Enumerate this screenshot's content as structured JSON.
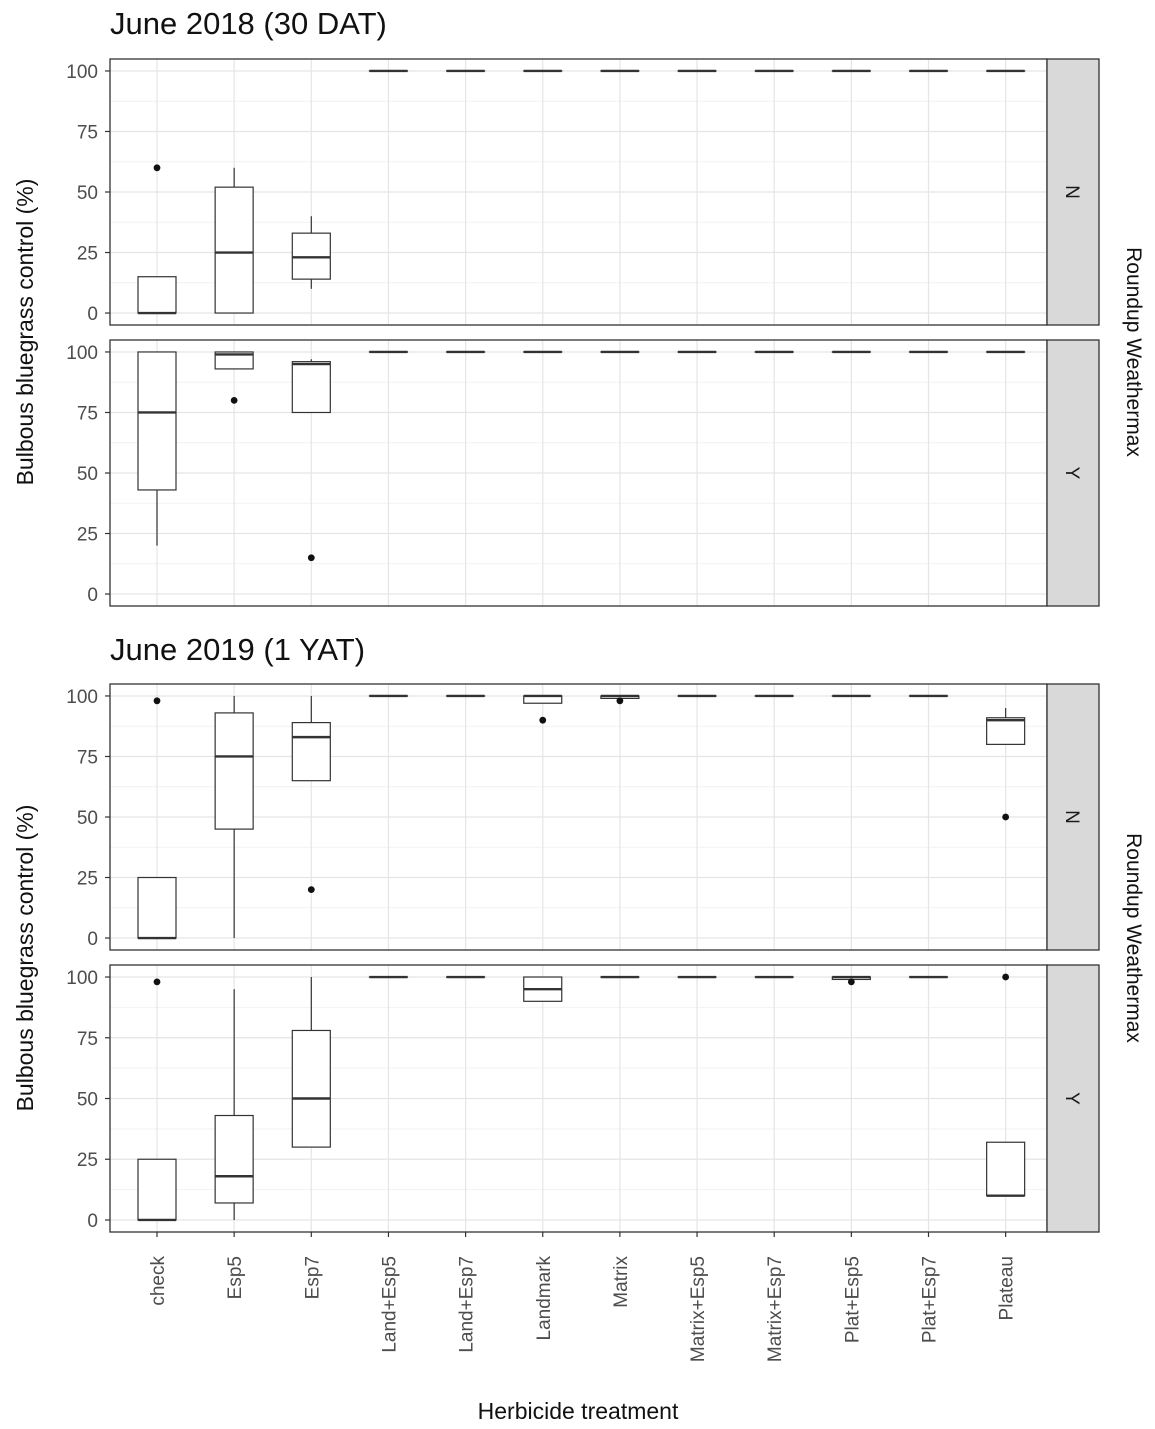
{
  "figure": {
    "xlabel": "Herbicide treatment",
    "ylabel": "Bulbous bluegrass control (%)",
    "facet_label": "Roundup Weathermax"
  },
  "chart_data": [
    {
      "type": "boxplot",
      "title": "June 2018 (30 DAT)",
      "xlabel": "Herbicide treatment",
      "ylabel": "Bulbous bluegrass control (%)",
      "ylim": [
        0,
        100
      ],
      "yticks": [
        0,
        25,
        50,
        75,
        100
      ],
      "categories": [
        "check",
        "Esp5",
        "Esp7",
        "Land+Esp5",
        "Land+Esp7",
        "Landmark",
        "Matrix",
        "Matrix+Esp5",
        "Matrix+Esp7",
        "Plat+Esp5",
        "Plat+Esp7",
        "Plateau"
      ],
      "facet_title": "Roundup Weathermax",
      "panels": [
        {
          "facet": "N",
          "boxes": [
            {
              "min": 0,
              "q1": 0,
              "median": 0,
              "q3": 15,
              "max": 15,
              "outliers": [
                60
              ]
            },
            {
              "min": 0,
              "q1": 0,
              "median": 25,
              "q3": 52,
              "max": 60,
              "outliers": []
            },
            {
              "min": 10,
              "q1": 14,
              "median": 23,
              "q3": 33,
              "max": 40,
              "outliers": []
            },
            {
              "min": 100,
              "q1": 100,
              "median": 100,
              "q3": 100,
              "max": 100,
              "outliers": []
            },
            {
              "min": 100,
              "q1": 100,
              "median": 100,
              "q3": 100,
              "max": 100,
              "outliers": []
            },
            {
              "min": 100,
              "q1": 100,
              "median": 100,
              "q3": 100,
              "max": 100,
              "outliers": []
            },
            {
              "min": 100,
              "q1": 100,
              "median": 100,
              "q3": 100,
              "max": 100,
              "outliers": []
            },
            {
              "min": 100,
              "q1": 100,
              "median": 100,
              "q3": 100,
              "max": 100,
              "outliers": []
            },
            {
              "min": 100,
              "q1": 100,
              "median": 100,
              "q3": 100,
              "max": 100,
              "outliers": []
            },
            {
              "min": 100,
              "q1": 100,
              "median": 100,
              "q3": 100,
              "max": 100,
              "outliers": []
            },
            {
              "min": 100,
              "q1": 100,
              "median": 100,
              "q3": 100,
              "max": 100,
              "outliers": []
            },
            {
              "min": 100,
              "q1": 100,
              "median": 100,
              "q3": 100,
              "max": 100,
              "outliers": []
            }
          ]
        },
        {
          "facet": "Y",
          "boxes": [
            {
              "min": 20,
              "q1": 43,
              "median": 75,
              "q3": 100,
              "max": 100,
              "outliers": []
            },
            {
              "min": 93,
              "q1": 93,
              "median": 99,
              "q3": 100,
              "max": 100,
              "outliers": [
                80
              ]
            },
            {
              "min": 75,
              "q1": 75,
              "median": 95,
              "q3": 96,
              "max": 97,
              "outliers": [
                15
              ]
            },
            {
              "min": 100,
              "q1": 100,
              "median": 100,
              "q3": 100,
              "max": 100,
              "outliers": []
            },
            {
              "min": 100,
              "q1": 100,
              "median": 100,
              "q3": 100,
              "max": 100,
              "outliers": []
            },
            {
              "min": 100,
              "q1": 100,
              "median": 100,
              "q3": 100,
              "max": 100,
              "outliers": []
            },
            {
              "min": 100,
              "q1": 100,
              "median": 100,
              "q3": 100,
              "max": 100,
              "outliers": []
            },
            {
              "min": 100,
              "q1": 100,
              "median": 100,
              "q3": 100,
              "max": 100,
              "outliers": []
            },
            {
              "min": 100,
              "q1": 100,
              "median": 100,
              "q3": 100,
              "max": 100,
              "outliers": []
            },
            {
              "min": 100,
              "q1": 100,
              "median": 100,
              "q3": 100,
              "max": 100,
              "outliers": []
            },
            {
              "min": 100,
              "q1": 100,
              "median": 100,
              "q3": 100,
              "max": 100,
              "outliers": []
            },
            {
              "min": 100,
              "q1": 100,
              "median": 100,
              "q3": 100,
              "max": 100,
              "outliers": []
            }
          ]
        }
      ]
    },
    {
      "type": "boxplot",
      "title": "June 2019 (1 YAT)",
      "xlabel": "Herbicide treatment",
      "ylabel": "Bulbous bluegrass control (%)",
      "ylim": [
        0,
        100
      ],
      "yticks": [
        0,
        25,
        50,
        75,
        100
      ],
      "categories": [
        "check",
        "Esp5",
        "Esp7",
        "Land+Esp5",
        "Land+Esp7",
        "Landmark",
        "Matrix",
        "Matrix+Esp5",
        "Matrix+Esp7",
        "Plat+Esp5",
        "Plat+Esp7",
        "Plateau"
      ],
      "facet_title": "Roundup Weathermax",
      "panels": [
        {
          "facet": "N",
          "boxes": [
            {
              "min": 0,
              "q1": 0,
              "median": 0,
              "q3": 25,
              "max": 25,
              "outliers": [
                98
              ]
            },
            {
              "min": 0,
              "q1": 45,
              "median": 75,
              "q3": 93,
              "max": 100,
              "outliers": []
            },
            {
              "min": 65,
              "q1": 65,
              "median": 83,
              "q3": 89,
              "max": 100,
              "outliers": [
                20
              ]
            },
            {
              "min": 100,
              "q1": 100,
              "median": 100,
              "q3": 100,
              "max": 100,
              "outliers": []
            },
            {
              "min": 100,
              "q1": 100,
              "median": 100,
              "q3": 100,
              "max": 100,
              "outliers": []
            },
            {
              "min": 97,
              "q1": 97,
              "median": 100,
              "q3": 100,
              "max": 100,
              "outliers": [
                90
              ]
            },
            {
              "min": 99,
              "q1": 99,
              "median": 100,
              "q3": 100,
              "max": 100,
              "outliers": [
                98
              ]
            },
            {
              "min": 100,
              "q1": 100,
              "median": 100,
              "q3": 100,
              "max": 100,
              "outliers": []
            },
            {
              "min": 100,
              "q1": 100,
              "median": 100,
              "q3": 100,
              "max": 100,
              "outliers": []
            },
            {
              "min": 100,
              "q1": 100,
              "median": 100,
              "q3": 100,
              "max": 100,
              "outliers": []
            },
            {
              "min": 100,
              "q1": 100,
              "median": 100,
              "q3": 100,
              "max": 100,
              "outliers": []
            },
            {
              "min": 80,
              "q1": 80,
              "median": 90,
              "q3": 91,
              "max": 95,
              "outliers": [
                50
              ]
            }
          ]
        },
        {
          "facet": "Y",
          "boxes": [
            {
              "min": 0,
              "q1": 0,
              "median": 0,
              "q3": 25,
              "max": 25,
              "outliers": [
                98
              ]
            },
            {
              "min": 0,
              "q1": 7,
              "median": 18,
              "q3": 43,
              "max": 95,
              "outliers": []
            },
            {
              "min": 30,
              "q1": 30,
              "median": 50,
              "q3": 78,
              "max": 100,
              "outliers": []
            },
            {
              "min": 100,
              "q1": 100,
              "median": 100,
              "q3": 100,
              "max": 100,
              "outliers": []
            },
            {
              "min": 100,
              "q1": 100,
              "median": 100,
              "q3": 100,
              "max": 100,
              "outliers": []
            },
            {
              "min": 90,
              "q1": 90,
              "median": 95,
              "q3": 100,
              "max": 100,
              "outliers": []
            },
            {
              "min": 100,
              "q1": 100,
              "median": 100,
              "q3": 100,
              "max": 100,
              "outliers": []
            },
            {
              "min": 100,
              "q1": 100,
              "median": 100,
              "q3": 100,
              "max": 100,
              "outliers": []
            },
            {
              "min": 100,
              "q1": 100,
              "median": 100,
              "q3": 100,
              "max": 100,
              "outliers": []
            },
            {
              "min": 99,
              "q1": 99,
              "median": 100,
              "q3": 100,
              "max": 100,
              "outliers": [
                98
              ]
            },
            {
              "min": 100,
              "q1": 100,
              "median": 100,
              "q3": 100,
              "max": 100,
              "outliers": []
            },
            {
              "min": 10,
              "q1": 10,
              "median": 10,
              "q3": 32,
              "max": 32,
              "outliers": [
                100
              ]
            }
          ]
        }
      ]
    }
  ]
}
